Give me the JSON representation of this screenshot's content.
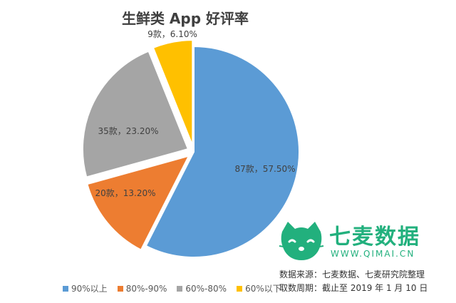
{
  "chart_data": {
    "type": "pie",
    "title": "生鲜类 App 好评率",
    "categories": [
      "90%以上",
      "80%-90%",
      "60%-80%",
      "60%以下"
    ],
    "values": [
      57.5,
      13.2,
      23.2,
      6.1
    ],
    "counts": [
      "87款",
      "20款",
      "35款",
      "9款"
    ],
    "data_labels": [
      "87款，57.50%",
      "20款，13.20%",
      "35款，23.20%",
      "9款，6.10%"
    ],
    "colors": [
      "#5b9bd5",
      "#ed7d31",
      "#a5a5a5",
      "#ffc000"
    ],
    "legend_position": "bottom"
  },
  "logo": {
    "brand": "七麦数据",
    "url": "WWW.QIMAI.CN",
    "color": "#22b07d",
    "icon": "cat-icon"
  },
  "source": {
    "line1": "数据来源：七麦数据、七麦研究院整理",
    "line2": "取数周期：截止至 2019 年 1 月 10 日"
  }
}
